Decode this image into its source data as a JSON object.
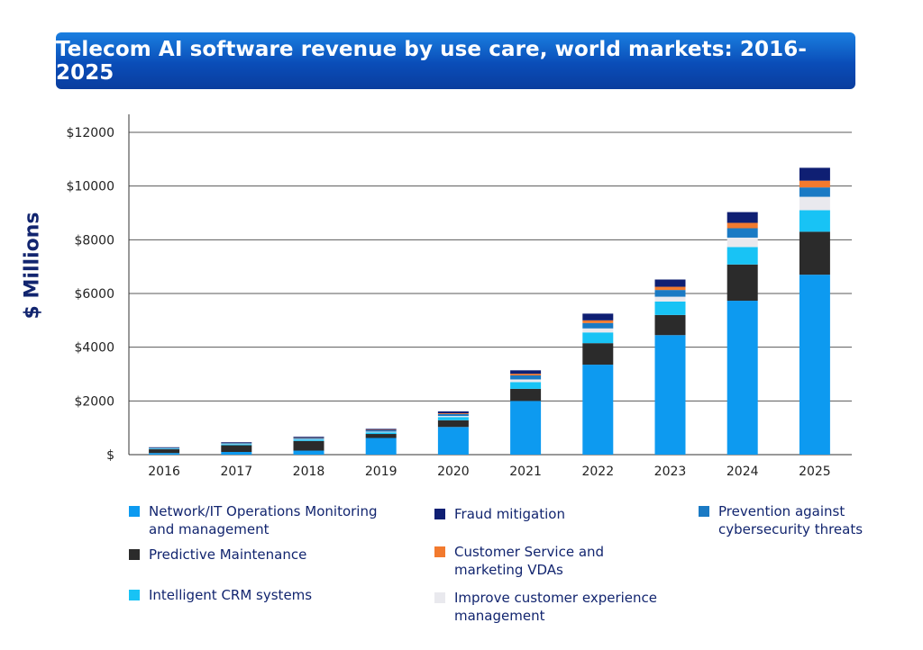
{
  "chart_data": {
    "type": "bar",
    "stacked": true,
    "title": "Telecom AI software revenue by use care, world markets: 2016-2025",
    "ylabel": "$ Millions",
    "xlabel": "",
    "ylim": [
      0,
      12000
    ],
    "yticks": [
      0,
      2000,
      4000,
      6000,
      8000,
      10000,
      12000
    ],
    "ytick_labels": [
      "$",
      "$2000",
      "$4000",
      "$6000",
      "$8000",
      "$10000",
      "$12000"
    ],
    "categories": [
      "2016",
      "2017",
      "2018",
      "2019",
      "2020",
      "2021",
      "2022",
      "2023",
      "2024",
      "2025"
    ],
    "series": [
      {
        "name": "Network/IT Operations Monitoring\nand management",
        "color": "#0d9af0",
        "values": [
          60,
          100,
          150,
          620,
          1030,
          2000,
          3350,
          4450,
          5730,
          6700
        ]
      },
      {
        "name": "Predictive Maintenance",
        "color": "#2b2b2b",
        "values": [
          140,
          250,
          360,
          150,
          250,
          450,
          800,
          750,
          1350,
          1600
        ]
      },
      {
        "name": "Intelligent CRM systems",
        "color": "#18c3f5",
        "values": [
          20,
          35,
          50,
          60,
          120,
          250,
          400,
          500,
          650,
          800
        ]
      },
      {
        "name": "Improve customer experience\nmanagement",
        "color": "#e9e9ee",
        "values": [
          10,
          15,
          20,
          25,
          40,
          100,
          150,
          180,
          350,
          500
        ]
      },
      {
        "name": "Prevention against\ncybersecurity threats",
        "color": "#1a7ac4",
        "values": [
          20,
          30,
          40,
          50,
          70,
          150,
          200,
          250,
          350,
          350
        ]
      },
      {
        "name": "Customer Service and\nmarketing VDAs",
        "color": "#f27a2e",
        "values": [
          5,
          10,
          15,
          15,
          30,
          60,
          100,
          120,
          200,
          250
        ]
      },
      {
        "name": "Fraud mitigation",
        "color": "#0f1f73",
        "values": [
          20,
          25,
          30,
          40,
          70,
          130,
          250,
          270,
          400,
          480
        ]
      }
    ],
    "legend": [
      {
        "label": "Network/IT Operations Monitoring\nand management",
        "color": "#0d9af0"
      },
      {
        "label": "Predictive Maintenance",
        "color": "#2b2b2b"
      },
      {
        "label": "Intelligent CRM systems",
        "color": "#18c3f5"
      },
      {
        "label": "Fraud mitigation",
        "color": "#0f1f73"
      },
      {
        "label": "Customer Service and\nmarketing VDAs",
        "color": "#f27a2e"
      },
      {
        "label": "Improve customer experience\nmanagement",
        "color": "#e9e9ee"
      },
      {
        "label": "Prevention against\ncybersecurity threats",
        "color": "#1a7ac4"
      }
    ]
  }
}
